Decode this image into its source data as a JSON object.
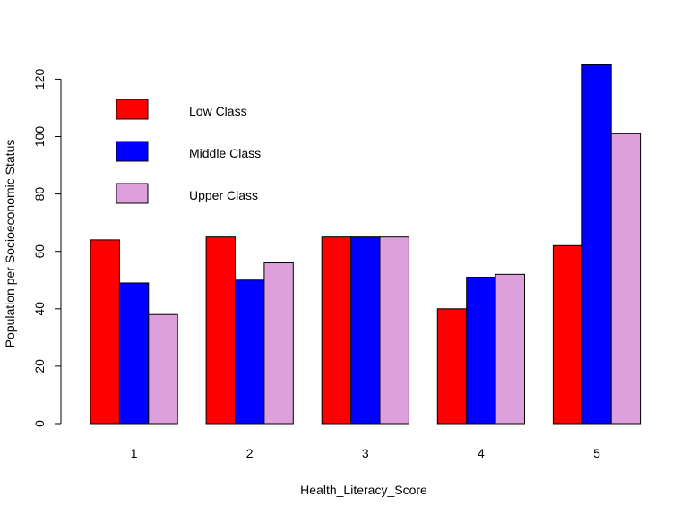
{
  "chart_data": {
    "type": "bar",
    "title": "",
    "xlabel": "Health_Literacy_Score",
    "ylabel": "Population per Socioeconomic Status",
    "categories": [
      "1",
      "2",
      "3",
      "4",
      "5"
    ],
    "series": [
      {
        "name": "Low Class",
        "color": "#ff0000",
        "values": [
          64,
          65,
          65,
          40,
          62
        ]
      },
      {
        "name": "Middle Class",
        "color": "#0000ff",
        "values": [
          49,
          50,
          65,
          51,
          125
        ]
      },
      {
        "name": "Upper Class",
        "color": "#dda0dd",
        "values": [
          38,
          56,
          65,
          52,
          101
        ]
      }
    ],
    "ylim": [
      0,
      125
    ],
    "yticks": [
      0,
      20,
      40,
      60,
      80,
      100,
      120
    ],
    "grid": false,
    "legend_position": "top-left"
  }
}
